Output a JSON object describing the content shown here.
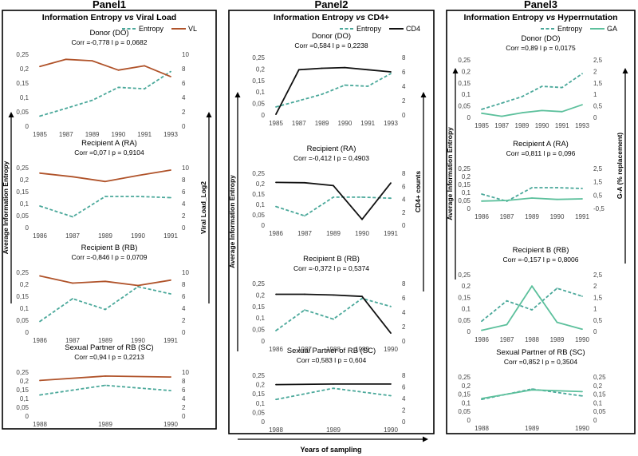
{
  "colors": {
    "entropy": "#4aa89a",
    "vl": "#b0532a",
    "cd4": "#111111",
    "ga": "#5cc09c",
    "text": "#000000",
    "tick": "#444444"
  },
  "shared_axis_labels": {
    "panel1_y_left": "Average Information Entropy",
    "panel1_y_right": "Viral Load_Log2",
    "panel2_y_left": "Average Information Entropy",
    "panel2_y_right": "CD4+ counts",
    "panel3_y_left": "Average Information Entropy",
    "panel3_y_right": "G-A (% replacement)",
    "x_bottom": "Years of sampling"
  },
  "chart_data": [
    {
      "panel": "Panel1",
      "type": "line",
      "title": "Information Entropy vs Viral Load",
      "title_parts": [
        "Information Entropy ",
        "vs",
        " Viral Load"
      ],
      "legend": [
        {
          "name": "Entropy",
          "style": "dashed"
        },
        {
          "name": "VL",
          "style": "solid"
        }
      ],
      "legend_placement": "top-right",
      "ylabel_left": "Average Information Entropy",
      "ylabel_right": "Viral Load_Log2",
      "grid": false,
      "subplots": [
        {
          "name": "Donor (DO)",
          "stats": "Corr =-0,778 l p = 0,0682",
          "categories": [
            "1985",
            "1987",
            "1989",
            "1990",
            "1991",
            "1993"
          ],
          "yticks_left": [
            "0",
            "0,05",
            "0,1",
            "0,15",
            "0,2",
            "0,25"
          ],
          "ylim_left": [
            0,
            0.25
          ],
          "yticks_right": [
            "0",
            "2",
            "4",
            "6",
            "8",
            "10"
          ],
          "ylim_right": [
            0,
            10
          ],
          "series": [
            {
              "name": "Entropy",
              "axis": "left",
              "values": [
                0.035,
                0.062,
                0.09,
                0.135,
                0.13,
                0.19
              ]
            },
            {
              "name": "VL",
              "axis": "right",
              "values": [
                8.3,
                9.3,
                9.1,
                7.8,
                8.4,
                6.9
              ]
            }
          ]
        },
        {
          "name": "Recipient A (RA)",
          "stats": "Corr =0,07 l p = 0,9104",
          "categories": [
            "1986",
            "1987",
            "1989",
            "1990",
            "1991"
          ],
          "yticks_left": [
            "0",
            "0,05",
            "0,1",
            "0,15",
            "0,2",
            "0,25"
          ],
          "ylim_left": [
            0,
            0.25
          ],
          "yticks_right": [
            "0",
            "2",
            "4",
            "6",
            "8",
            "10"
          ],
          "ylim_right": [
            0,
            10
          ],
          "series": [
            {
              "name": "Entropy",
              "axis": "left",
              "values": [
                0.09,
                0.045,
                0.13,
                0.13,
                0.125
              ]
            },
            {
              "name": "VL",
              "axis": "right",
              "values": [
                9.1,
                8.5,
                7.7,
                8.7,
                9.6
              ]
            }
          ]
        },
        {
          "name": "Recipient B (RB)",
          "stats": "Corr =-0,846 l p = 0,0709",
          "categories": [
            "1986",
            "1987",
            "1989",
            "1990",
            "1991"
          ],
          "yticks_left": [
            "0",
            "0,05",
            "0,1",
            "0,15",
            "0,2",
            "0,25"
          ],
          "ylim_left": [
            0,
            0.25
          ],
          "yticks_right": [
            "0",
            "2",
            "4",
            "6",
            "8",
            "10"
          ],
          "ylim_right": [
            0,
            10
          ],
          "series": [
            {
              "name": "Entropy",
              "axis": "left",
              "values": [
                0.045,
                0.14,
                0.095,
                0.19,
                0.16
              ]
            },
            {
              "name": "VL",
              "axis": "right",
              "values": [
                9.4,
                8.2,
                8.5,
                7.8,
                8.7
              ]
            }
          ]
        },
        {
          "name": "Sexual Partner of RB (SC)",
          "stats": "Corr =0,94 l p = 0,2213",
          "categories": [
            "1988",
            "1989",
            "1990"
          ],
          "yticks_left": [
            "0",
            "0,05",
            "0,1",
            "0,15",
            "0,2",
            "0,25"
          ],
          "ylim_left": [
            0,
            0.25
          ],
          "yticks_right": [
            "0",
            "2",
            "4",
            "6",
            "8",
            "10"
          ],
          "ylim_right": [
            0,
            10
          ],
          "series": [
            {
              "name": "Entropy",
              "axis": "left",
              "values": [
                0.12,
                0.175,
                0.145
              ]
            },
            {
              "name": "VL",
              "axis": "right",
              "values": [
                8.1,
                9.1,
                8.9
              ]
            }
          ]
        }
      ]
    },
    {
      "panel": "Panel2",
      "type": "line",
      "title": "Information Entropy vs CD4+",
      "title_parts": [
        "Information Entropy ",
        "vs",
        " CD4+"
      ],
      "legend": [
        {
          "name": "Entropy",
          "style": "dashed"
        },
        {
          "name": "CD4",
          "style": "solid"
        }
      ],
      "legend_placement": "top-right",
      "ylabel_left": "Average Information Entropy",
      "ylabel_right": "CD4+ counts",
      "xlabel": "Years of sampling",
      "grid": false,
      "subplots": [
        {
          "name": "Donor (DO)",
          "stats": "Corr =0,584 l p = 0,2238",
          "categories": [
            "1985",
            "1987",
            "1989",
            "1990",
            "1991",
            "1993"
          ],
          "yticks_left": [
            "0",
            "0,05",
            "0,1",
            "0,15",
            "0,2",
            "0,25"
          ],
          "ylim_left": [
            0,
            0.25
          ],
          "yticks_right": [
            "0",
            "2",
            "4",
            "6",
            "8"
          ],
          "ylim_right": [
            0,
            8
          ],
          "series": [
            {
              "name": "Entropy",
              "axis": "left",
              "values": [
                0.035,
                0.062,
                0.09,
                0.13,
                0.125,
                0.18
              ]
            },
            {
              "name": "CD4",
              "axis": "right",
              "values": [
                0.1,
                6.3,
                6.5,
                6.6,
                6.3,
                6.0
              ]
            }
          ]
        },
        {
          "name": "Recipient (RA)",
          "stats": "Corr =-0,412 l p = 0,4903",
          "categories": [
            "1986",
            "1987",
            "1989",
            "1990",
            "1991"
          ],
          "yticks_left": [
            "0",
            "0,05",
            "0,1",
            "0,15",
            "0,2",
            "0,25"
          ],
          "ylim_left": [
            0,
            0.25
          ],
          "yticks_right": [
            "0",
            "2",
            "4",
            "6",
            "8"
          ],
          "ylim_right": [
            0,
            8
          ],
          "series": [
            {
              "name": "Entropy",
              "axis": "left",
              "values": [
                0.09,
                0.045,
                0.135,
                0.135,
                0.13
              ]
            },
            {
              "name": "CD4",
              "axis": "right",
              "values": [
                6.6,
                6.55,
                6.1,
                0.9,
                6.5
              ]
            }
          ]
        },
        {
          "name": "Recipient B (RB)",
          "stats": "Corr =-0,372 l p = 0,5374",
          "categories": [
            "1986",
            "1987",
            "1988",
            "1989",
            "1990"
          ],
          "yticks_left": [
            "0",
            "0,05",
            "0,1",
            "0,15",
            "0,2",
            "0,25"
          ],
          "ylim_left": [
            0,
            0.25
          ],
          "yticks_right": [
            "0",
            "2",
            "4",
            "6",
            "8"
          ],
          "ylim_right": [
            0,
            8
          ],
          "series": [
            {
              "name": "Entropy",
              "axis": "left",
              "values": [
                0.045,
                0.135,
                0.095,
                0.185,
                0.15
              ]
            },
            {
              "name": "CD4",
              "axis": "right",
              "values": [
                6.5,
                6.5,
                6.4,
                6.2,
                1.1
              ]
            }
          ]
        },
        {
          "name": "Sexual Partner of RB (SC)",
          "stats": "Corr =0,583 l p = 0,604",
          "categories": [
            "1988",
            "1989",
            "1990"
          ],
          "yticks_left": [
            "0",
            "0,05",
            "0,1",
            "0,15",
            "0,2",
            "0,25"
          ],
          "ylim_left": [
            0,
            0.25
          ],
          "yticks_right": [
            "0",
            "2",
            "4",
            "6",
            "8"
          ],
          "ylim_right": [
            0,
            8
          ],
          "series": [
            {
              "name": "Entropy",
              "axis": "left",
              "values": [
                0.12,
                0.18,
                0.14
              ]
            },
            {
              "name": "CD4",
              "axis": "right",
              "values": [
                6.4,
                6.5,
                6.5
              ]
            }
          ]
        }
      ]
    },
    {
      "panel": "Panel3",
      "type": "line",
      "title": "Information Entropy vs Hyperrnutation",
      "title_parts": [
        "Information Entropy ",
        "vs",
        " Hyperrnutation"
      ],
      "legend": [
        {
          "name": "Entropy",
          "style": "dashed"
        },
        {
          "name": "GA",
          "style": "solid"
        }
      ],
      "legend_placement": "top-right",
      "ylabel_left": "Average Information Entropy",
      "ylabel_right": "G-A (% replacement)",
      "grid": false,
      "subplots": [
        {
          "name": "Donor (DO)",
          "stats": "Corr =0,89 l p = 0,0175",
          "categories": [
            "1985",
            "1987",
            "1989",
            "1990",
            "1991",
            "1993"
          ],
          "yticks_left": [
            "0",
            "0,05",
            "0,1",
            "0,15",
            "0,2",
            "0,25"
          ],
          "ylim_left": [
            0,
            0.25
          ],
          "yticks_right": [
            "0",
            "0,5",
            "1",
            "1,5",
            "2",
            "2,5"
          ],
          "ylim_right": [
            0,
            2.5
          ],
          "series": [
            {
              "name": "Entropy",
              "axis": "left",
              "values": [
                0.035,
                0.062,
                0.09,
                0.135,
                0.13,
                0.19
              ]
            },
            {
              "name": "GA",
              "axis": "right",
              "values": [
                0.18,
                0.05,
                0.2,
                0.3,
                0.25,
                0.55
              ]
            }
          ]
        },
        {
          "name": "Recipient A (RA)",
          "stats": "Corr =0,811 l p = 0,096",
          "categories": [
            "1986",
            "1987",
            "1989",
            "1990",
            "1991"
          ],
          "yticks_left": [
            "0",
            "0,05",
            "0,1",
            "0,15",
            "0,2",
            "0,25"
          ],
          "ylim_left": [
            0,
            0.25
          ],
          "yticks_right": [
            "-0,5",
            "0,5",
            "1,5",
            "2,5"
          ],
          "ylim_right": [
            -0.5,
            2.5
          ],
          "series": [
            {
              "name": "Entropy",
              "axis": "left",
              "values": [
                0.09,
                0.045,
                0.13,
                0.13,
                0.125
              ]
            },
            {
              "name": "GA",
              "axis": "right",
              "values": [
                0.05,
                0.1,
                0.28,
                0.18,
                0.22
              ]
            }
          ]
        },
        {
          "name": "Recipient B (RB)",
          "stats": "Corr =-0,157 l p = 0,8006",
          "categories": [
            "1986",
            "1987",
            "1988",
            "1989",
            "1990"
          ],
          "yticks_left": [
            "0",
            "0,05",
            "0,1",
            "0,15",
            "0,2",
            "0,25"
          ],
          "ylim_left": [
            0,
            0.25
          ],
          "yticks_right": [
            "0",
            "0,5",
            "1",
            "1,5",
            "2",
            "2,5"
          ],
          "ylim_right": [
            0,
            2.5
          ],
          "series": [
            {
              "name": "Entropy",
              "axis": "left",
              "values": [
                0.045,
                0.135,
                0.095,
                0.19,
                0.155
              ]
            },
            {
              "name": "GA",
              "axis": "right",
              "values": [
                0.05,
                0.3,
                2.0,
                0.4,
                0.1
              ]
            }
          ]
        },
        {
          "name": "Sexual Partner of RB (SC)",
          "stats": "Corr =0,852 l p = 0,3504",
          "categories": [
            "1988",
            "1989",
            "1990"
          ],
          "yticks_left": [
            "0",
            "0,05",
            "0,1",
            "0,15",
            "0,2",
            "0,25"
          ],
          "ylim_left": [
            0,
            0.25
          ],
          "yticks_right": [
            "0",
            "0,05",
            "0,1",
            "0,15",
            "0,2",
            "0,25"
          ],
          "ylim_right": [
            0,
            0.25
          ],
          "series": [
            {
              "name": "Entropy",
              "axis": "left",
              "values": [
                0.12,
                0.18,
                0.14
              ]
            },
            {
              "name": "GA",
              "axis": "right",
              "values": [
                0.125,
                0.175,
                0.165
              ]
            }
          ]
        }
      ]
    }
  ]
}
